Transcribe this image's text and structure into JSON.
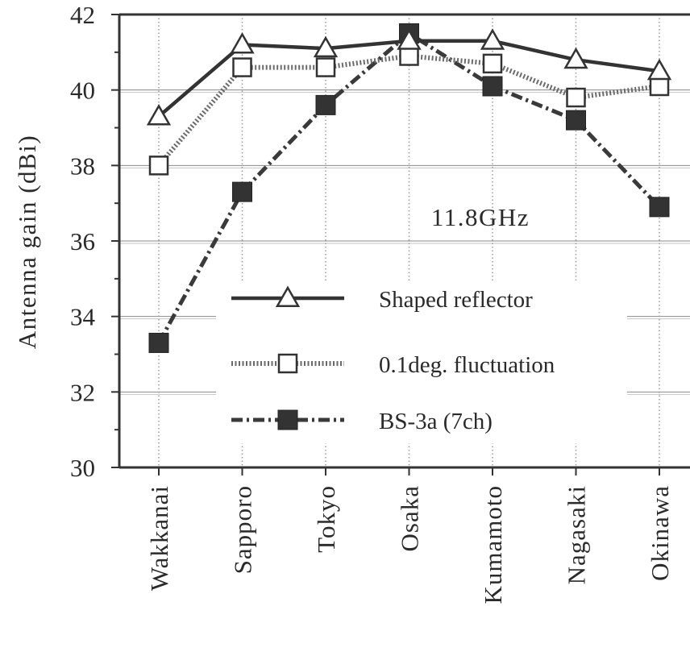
{
  "chart_data": {
    "type": "line",
    "ylabel": "Antenna gain (dBi)",
    "xlabel": "",
    "ylim": [
      30,
      42
    ],
    "yticks": [
      30,
      32,
      34,
      36,
      38,
      40,
      42
    ],
    "grid": true,
    "categories": [
      "Wakkanai",
      "Sapporo",
      "Tokyo",
      "Osaka",
      "Kumamoto",
      "Nagasaki",
      "Okinawa"
    ],
    "annotation": "11.8GHz",
    "legend_position": "lower-center",
    "series": [
      {
        "name": "Shaped reflector",
        "marker": "triangle-open",
        "line_style": "solid",
        "color": "#333333",
        "values": [
          39.3,
          41.2,
          41.1,
          41.3,
          41.3,
          40.8,
          40.5
        ]
      },
      {
        "name": "0.1deg. fluctuation",
        "marker": "square-open",
        "line_style": "dotted",
        "color": "#555555",
        "values": [
          38.0,
          40.6,
          40.6,
          40.9,
          40.7,
          39.8,
          40.1
        ]
      },
      {
        "name": "BS-3a (7ch)",
        "marker": "square-filled",
        "line_style": "dash-dot",
        "color": "#333333",
        "values": [
          33.3,
          37.3,
          39.6,
          41.5,
          40.1,
          39.2,
          36.9
        ]
      }
    ]
  }
}
